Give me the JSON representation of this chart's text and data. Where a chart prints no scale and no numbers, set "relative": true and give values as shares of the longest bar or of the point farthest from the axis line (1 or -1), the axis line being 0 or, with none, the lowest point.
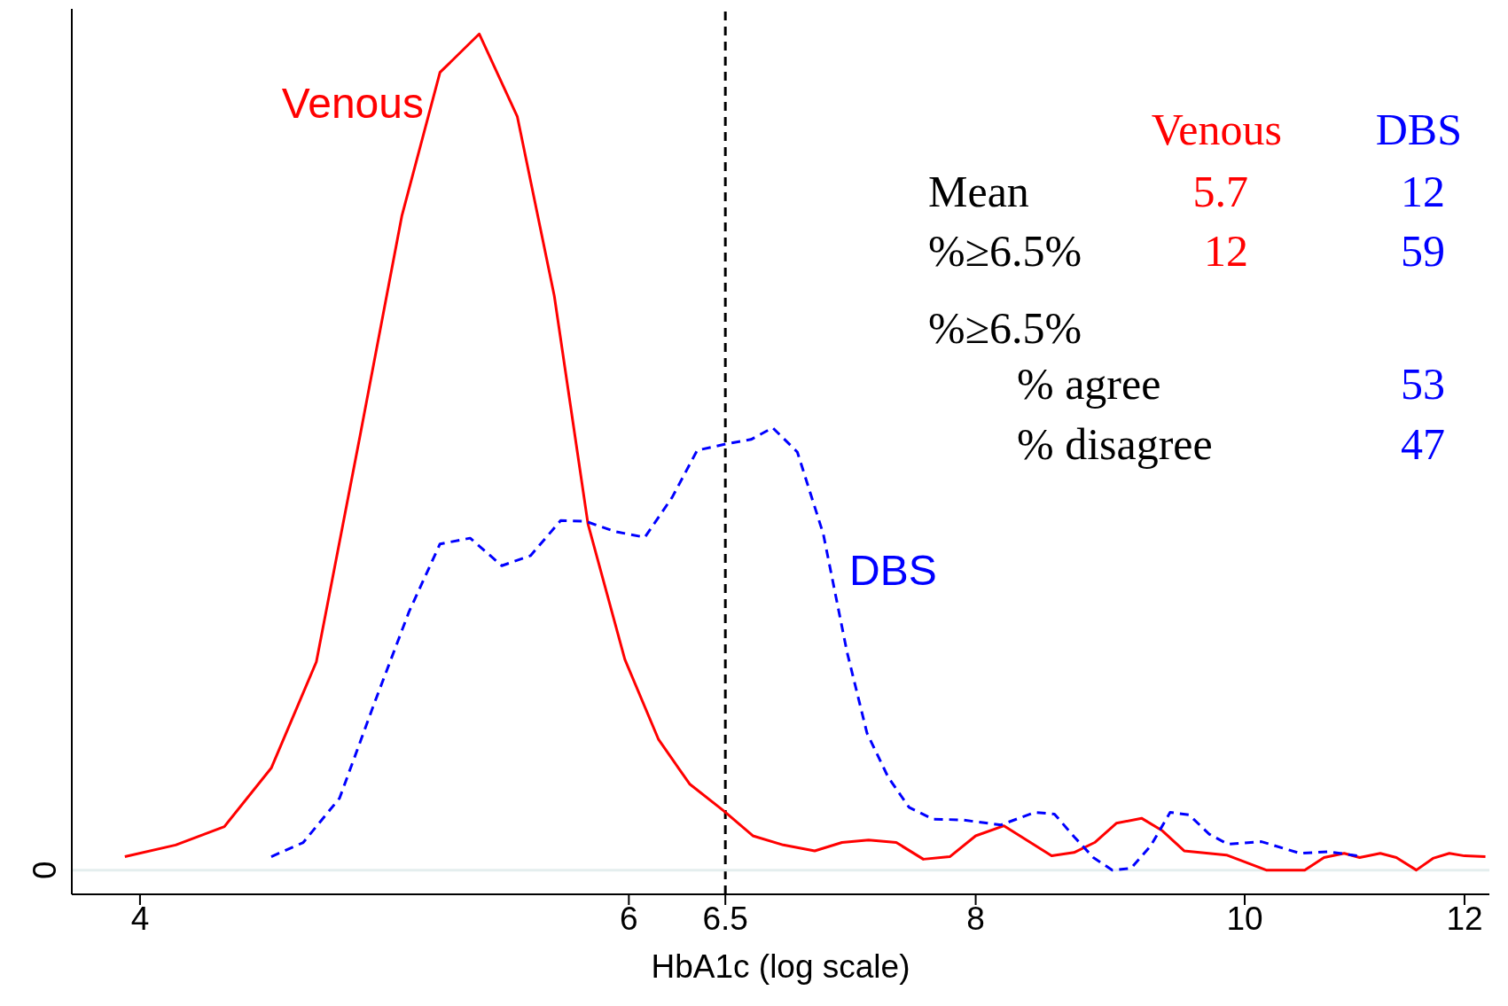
{
  "chart_data": {
    "type": "line",
    "xlabel": "HbA1c (log scale)",
    "log": "x",
    "relative": true,
    "xlim": [
      3.78,
      12.25
    ],
    "xticks": [
      4,
      6,
      6.5,
      8,
      10,
      12
    ],
    "ref_lines": [
      {
        "axis": "x",
        "value": 6.5,
        "color": "#000000",
        "line_style": "dashed"
      },
      {
        "axis": "y",
        "value": 0,
        "label": "0",
        "color": "#e4eeee",
        "line_style": "solid"
      }
    ],
    "series": [
      {
        "name": "Venous",
        "color": "#ff0000",
        "line_style": "solid",
        "x": [
          3.95,
          4.12,
          4.29,
          4.46,
          4.63,
          4.8,
          4.97,
          5.13,
          5.3,
          5.47,
          5.64,
          5.8,
          5.98,
          6.15,
          6.31,
          6.49,
          6.65,
          6.82,
          7.0,
          7.16,
          7.32,
          7.49,
          7.66,
          7.83,
          8.0,
          8.19,
          8.52,
          8.68,
          8.83,
          8.99,
          9.18,
          9.34,
          9.51,
          9.85,
          10.18,
          10.51,
          10.68,
          10.86,
          11.0,
          11.19,
          11.34,
          11.53,
          11.69,
          11.85,
          12.0,
          12.21
        ],
        "values": [
          0.016,
          0.03,
          0.052,
          0.122,
          0.249,
          0.518,
          0.782,
          0.954,
          1,
          0.901,
          0.687,
          0.414,
          0.252,
          0.156,
          0.103,
          0.071,
          0.041,
          0.03,
          0.023,
          0.033,
          0.036,
          0.033,
          0.013,
          0.016,
          0.041,
          0.053,
          0.017,
          0.021,
          0.033,
          0.056,
          0.062,
          0.047,
          0.023,
          0.018,
          0,
          0,
          0.015,
          0.02,
          0.015,
          0.02,
          0.015,
          0,
          0.014,
          0.02,
          0.017,
          0.016
        ]
      },
      {
        "name": "DBS",
        "color": "#0000ff",
        "line_style": "dashed",
        "x": [
          4.46,
          4.58,
          4.72,
          4.86,
          5.0,
          5.13,
          5.26,
          5.4,
          5.53,
          5.67,
          5.79,
          5.93,
          6.08,
          6.22,
          6.35,
          6.49,
          6.64,
          6.76,
          6.9,
          7.05,
          7.19,
          7.31,
          7.44,
          7.57,
          7.72,
          7.91,
          8.17,
          8.4,
          8.54,
          8.68,
          8.82,
          8.96,
          9.1,
          9.25,
          9.4,
          9.55,
          9.71,
          9.86,
          10.14,
          10.47,
          10.72,
          10.98
        ],
        "values": [
          0.016,
          0.033,
          0.086,
          0.201,
          0.309,
          0.39,
          0.397,
          0.364,
          0.376,
          0.418,
          0.417,
          0.405,
          0.398,
          0.446,
          0.502,
          0.509,
          0.515,
          0.529,
          0.5,
          0.402,
          0.261,
          0.164,
          0.111,
          0.075,
          0.061,
          0.06,
          0.054,
          0.069,
          0.067,
          0.04,
          0.015,
          0,
          0.002,
          0.029,
          0.069,
          0.066,
          0.043,
          0.031,
          0.034,
          0.02,
          0.022,
          0.017
        ]
      }
    ],
    "annotations": [
      "Venous",
      "DBS",
      "Mean",
      "5.7",
      "12",
      "%≥6.5%",
      "12",
      "59",
      "%≥6.5%",
      "% agree",
      "53",
      "% disagree",
      "47"
    ]
  }
}
